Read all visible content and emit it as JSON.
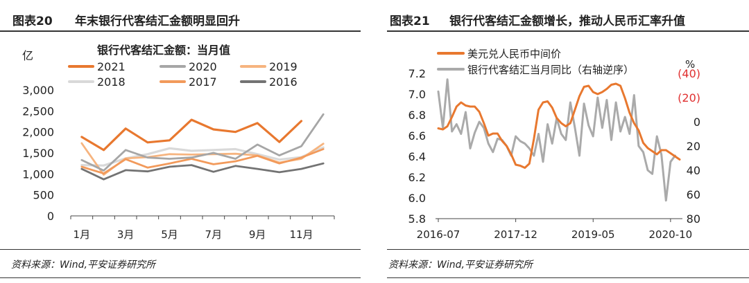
{
  "chart_data": [
    {
      "type": "line",
      "figure_label": "图表20",
      "title": "年末银行代客结汇金额明显回升",
      "subtitle": "银行代客结汇金额：当月值",
      "ylabel": "亿",
      "ylim": [
        0,
        3000
      ],
      "yticks": [
        "0",
        "500",
        "1,000",
        "1,500",
        "2,000",
        "2,500",
        "3,000"
      ],
      "categories": [
        "1月",
        "2月",
        "3月",
        "4月",
        "5月",
        "6月",
        "7月",
        "8月",
        "9月",
        "10月",
        "11月",
        "12月"
      ],
      "xtick_labels": [
        "1月",
        "",
        "3月",
        "",
        "5月",
        "",
        "7月",
        "",
        "9月",
        "",
        "11月",
        ""
      ],
      "legend_position": "top",
      "series": [
        {
          "name": "2021",
          "color": "#e8782f",
          "width": 3.2,
          "values": [
            1880,
            1570,
            2080,
            1750,
            1800,
            2290,
            2060,
            2000,
            2210,
            1760,
            2260,
            null
          ]
        },
        {
          "name": "2020",
          "color": "#a6a6a6",
          "width": 2.8,
          "values": [
            1330,
            1080,
            1570,
            1390,
            1360,
            1390,
            1500,
            1360,
            1700,
            1440,
            1660,
            2420
          ]
        },
        {
          "name": "2019",
          "color": "#f6b47f",
          "width": 2.8,
          "values": [
            1730,
            980,
            1370,
            1400,
            1470,
            1460,
            1470,
            1480,
            1440,
            1270,
            1360,
            1720
          ]
        },
        {
          "name": "2018",
          "color": "#d9d9d9",
          "width": 3.2,
          "values": [
            1210,
            1200,
            1370,
            1470,
            1610,
            1550,
            1570,
            1590,
            1470,
            1340,
            1400,
            1630
          ]
        },
        {
          "name": "2017",
          "color": "#f29a5b",
          "width": 2.8,
          "values": [
            1170,
            1010,
            1350,
            1150,
            1250,
            1360,
            1230,
            1300,
            1430,
            1250,
            1390,
            1590
          ]
        },
        {
          "name": "2016",
          "color": "#737373",
          "width": 2.8,
          "values": [
            1120,
            870,
            1090,
            1060,
            1170,
            1210,
            1050,
            1190,
            1120,
            1040,
            1120,
            1250
          ]
        }
      ],
      "source": "资料来源：Wind,平安证券研究所"
    },
    {
      "type": "line",
      "figure_label": "图表21",
      "title": "银行代客结汇金额增长，推动人民币汇率升值",
      "x_start": "2016-07",
      "xtick_labels": [
        "2016-07",
        "2017-12",
        "2019-05",
        "2020-10"
      ],
      "xtick_index": [
        0,
        17,
        34,
        51
      ],
      "ylim_left": [
        5.8,
        7.2
      ],
      "yticks_left": [
        "5.8",
        "6.0",
        "6.2",
        "6.4",
        "6.6",
        "6.8",
        "7.0",
        "7.2"
      ],
      "ylim_right_inverted": [
        80,
        -40
      ],
      "yticks_right": [
        "(40)",
        "(20)",
        "0",
        "20",
        "40",
        "60",
        "80"
      ],
      "yticks_right_negative_color": "#e03030",
      "right_axis_unit": "%",
      "right_axis_note": "右轴逆序",
      "legend_position": "top",
      "series": [
        {
          "name": "美元兑人民币中间价",
          "axis": "left",
          "color": "#e8782f",
          "width": 3,
          "values": [
            6.67,
            6.66,
            6.69,
            6.78,
            6.88,
            6.92,
            6.89,
            6.88,
            6.88,
            6.83,
            6.72,
            6.6,
            6.62,
            6.62,
            6.55,
            6.5,
            6.42,
            6.32,
            6.31,
            6.29,
            6.33,
            6.57,
            6.85,
            6.92,
            6.93,
            6.87,
            6.77,
            6.72,
            6.69,
            6.72,
            6.85,
            6.98,
            7.07,
            7.08,
            7.02,
            7.0,
            7.02,
            7.05,
            7.09,
            7.1,
            7.08,
            6.96,
            6.82,
            6.72,
            6.65,
            6.53,
            6.48,
            6.45,
            6.42,
            6.46,
            6.46,
            6.43,
            6.4,
            6.37
          ]
        },
        {
          "name": "银行代客结汇当月同比",
          "axis": "right",
          "inverted": true,
          "color": "#aaaaaa",
          "width": 3,
          "values": [
            -25,
            5,
            -35,
            8,
            2,
            10,
            -8,
            22,
            9,
            0,
            5,
            18,
            25,
            14,
            15,
            20,
            28,
            12,
            16,
            18,
            22,
            28,
            10,
            33,
            2,
            18,
            -3,
            10,
            15,
            -16,
            5,
            28,
            -15,
            3,
            12,
            -20,
            5,
            -18,
            15,
            -16,
            8,
            -4,
            10,
            -22,
            20,
            25,
            40,
            43,
            12,
            27,
            65,
            33,
            28
          ]
        }
      ],
      "source": "资料来源：Wind,平安证券研究所"
    }
  ]
}
